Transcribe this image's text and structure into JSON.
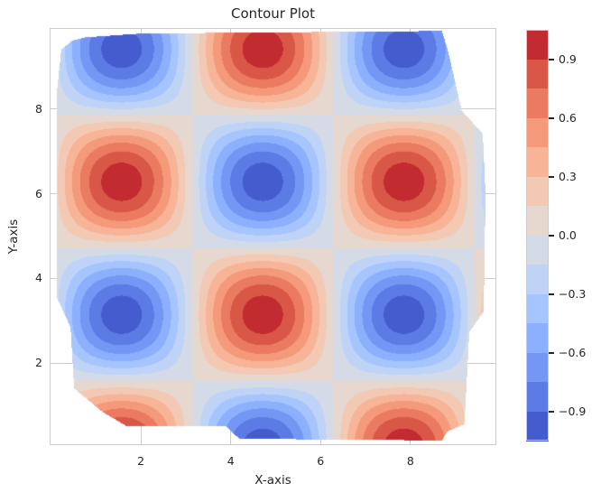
{
  "chart_data": {
    "type": "contour",
    "title": "Contour Plot",
    "xlabel": "X-axis",
    "ylabel": "Y-axis",
    "function": "z = sin(x) * cos(y)",
    "colormap": "coolwarm",
    "grid": true,
    "legend_position": "colorbar-right",
    "xlim": [
      -0.03,
      9.91
    ],
    "ylim": [
      0.06,
      9.92
    ],
    "xticks": [
      2,
      4,
      6,
      8
    ],
    "yticks": [
      2,
      4,
      6,
      8
    ],
    "xtick_labels": [
      "2",
      "4",
      "6",
      "8"
    ],
    "ytick_labels": [
      "2",
      "4",
      "6",
      "8"
    ],
    "levels": [
      -1.05,
      -0.9,
      -0.75,
      -0.6,
      -0.45,
      -0.3,
      -0.15,
      0,
      0.15,
      0.3,
      0.45,
      0.6,
      0.75,
      0.9,
      1.05
    ],
    "band_colors": [
      "#455cce",
      "#5c7be5",
      "#7497f5",
      "#8db0fe",
      "#a6c4fe",
      "#bed3f6",
      "#d4dbe7",
      "#e6d7cf",
      "#f3c9b4",
      "#f7b497",
      "#f49a7b",
      "#ea7b60",
      "#d95747",
      "#c22b30"
    ],
    "colorbar_ticks": [
      {
        "value": 0.9,
        "label": "0.9"
      },
      {
        "value": 0.6,
        "label": "0.6"
      },
      {
        "value": 0.3,
        "label": "0.3"
      },
      {
        "value": 0.0,
        "label": "0.0"
      },
      {
        "value": -0.3,
        "label": "−0.3"
      },
      {
        "value": -0.6,
        "label": "−0.6"
      },
      {
        "value": -0.9,
        "label": "−0.9"
      }
    ],
    "boundary": [
      [
        0.134,
        8.44
      ],
      [
        0.134,
        3.54
      ],
      [
        0.435,
        2.85
      ],
      [
        0.515,
        1.4
      ],
      [
        1.137,
        0.85
      ],
      [
        1.679,
        0.51
      ],
      [
        3.89,
        0.51
      ],
      [
        4.19,
        0.21
      ],
      [
        8.7,
        0.17
      ],
      [
        8.82,
        0.38
      ],
      [
        9.2,
        0.55
      ],
      [
        9.31,
        2.73
      ],
      [
        9.63,
        3.22
      ],
      [
        9.67,
        5.99
      ],
      [
        9.61,
        7.42
      ],
      [
        9.14,
        7.97
      ],
      [
        8.84,
        9.36
      ],
      [
        8.7,
        9.85
      ],
      [
        2.02,
        9.79
      ],
      [
        0.776,
        9.7
      ],
      [
        0.47,
        9.62
      ],
      [
        0.23,
        9.41
      ]
    ],
    "colors": {
      "background": "#ffffff",
      "grid": "#cccccc",
      "spine": "#cccccc",
      "text": "#262626"
    }
  }
}
